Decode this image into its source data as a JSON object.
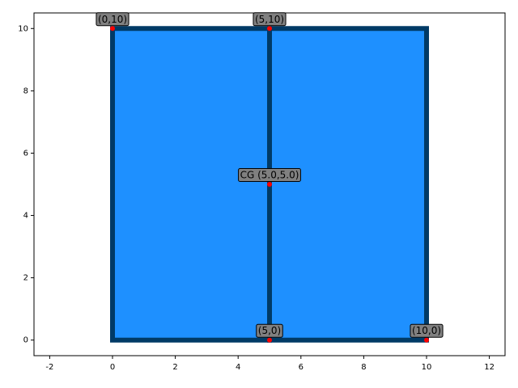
{
  "chart_data": {
    "type": "scatter",
    "x": [
      0,
      5,
      5,
      5,
      10
    ],
    "y": [
      10,
      10,
      5,
      0,
      0
    ],
    "point_labels": [
      "(0,10)",
      "(5,10)",
      "CG (5.0,5.0)",
      "(5,0)",
      "(10,0)"
    ],
    "color": "#ff0000",
    "polygons": [
      {
        "x": [
          0,
          5,
          5,
          0
        ],
        "y": [
          0,
          0,
          10,
          10
        ]
      },
      {
        "x": [
          5,
          10,
          10,
          5
        ],
        "y": [
          0,
          0,
          10,
          10
        ]
      }
    ],
    "fill_color": "#1e90ff",
    "edge_color": "#003a66",
    "label_box_color": "#808080",
    "xlim": [
      -2.5,
      12.5
    ],
    "xticks": [
      -2,
      0,
      2,
      4,
      6,
      8,
      10,
      12
    ],
    "ylim": [
      -0.5,
      10.5
    ],
    "yticks": [
      0,
      2,
      4,
      6,
      8,
      10
    ],
    "grid": false
  }
}
